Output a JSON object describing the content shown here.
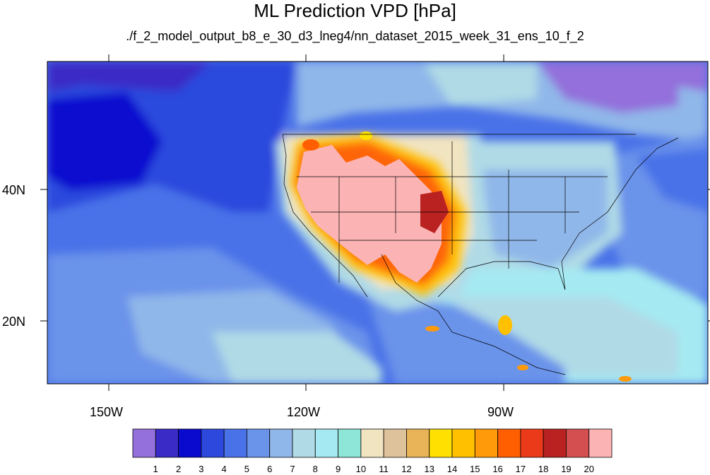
{
  "title": "ML Prediction VPD [hPa]",
  "subtitle": "./f_2_model_output_b8_e_30_d3_lneg4/nn_dataset_2015_week_31_ens_10_f_2",
  "lat_ticks": [
    "40N",
    "20N"
  ],
  "lon_ticks": [
    "150W",
    "120W",
    "90W"
  ],
  "colorbar": {
    "labels": [
      "1",
      "2",
      "3",
      "4",
      "5",
      "6",
      "7",
      "8",
      "9",
      "10",
      "11",
      "12",
      "13",
      "14",
      "15",
      "16",
      "17",
      "18",
      "19",
      "20"
    ],
    "colors": [
      "#9370DB",
      "#3B2BC6",
      "#0A0ACF",
      "#2C48DD",
      "#4A72E8",
      "#6A93EA",
      "#90B7E9",
      "#B0DAE6",
      "#A5EAF2",
      "#8DE6D8",
      "#F1E4C0",
      "#DEC29B",
      "#E8B457",
      "#FFE000",
      "#FFC000",
      "#FF9A0A",
      "#FF5F00",
      "#EA3A1A",
      "#BA2222",
      "#D45050",
      "#FCB3B3"
    ]
  }
}
